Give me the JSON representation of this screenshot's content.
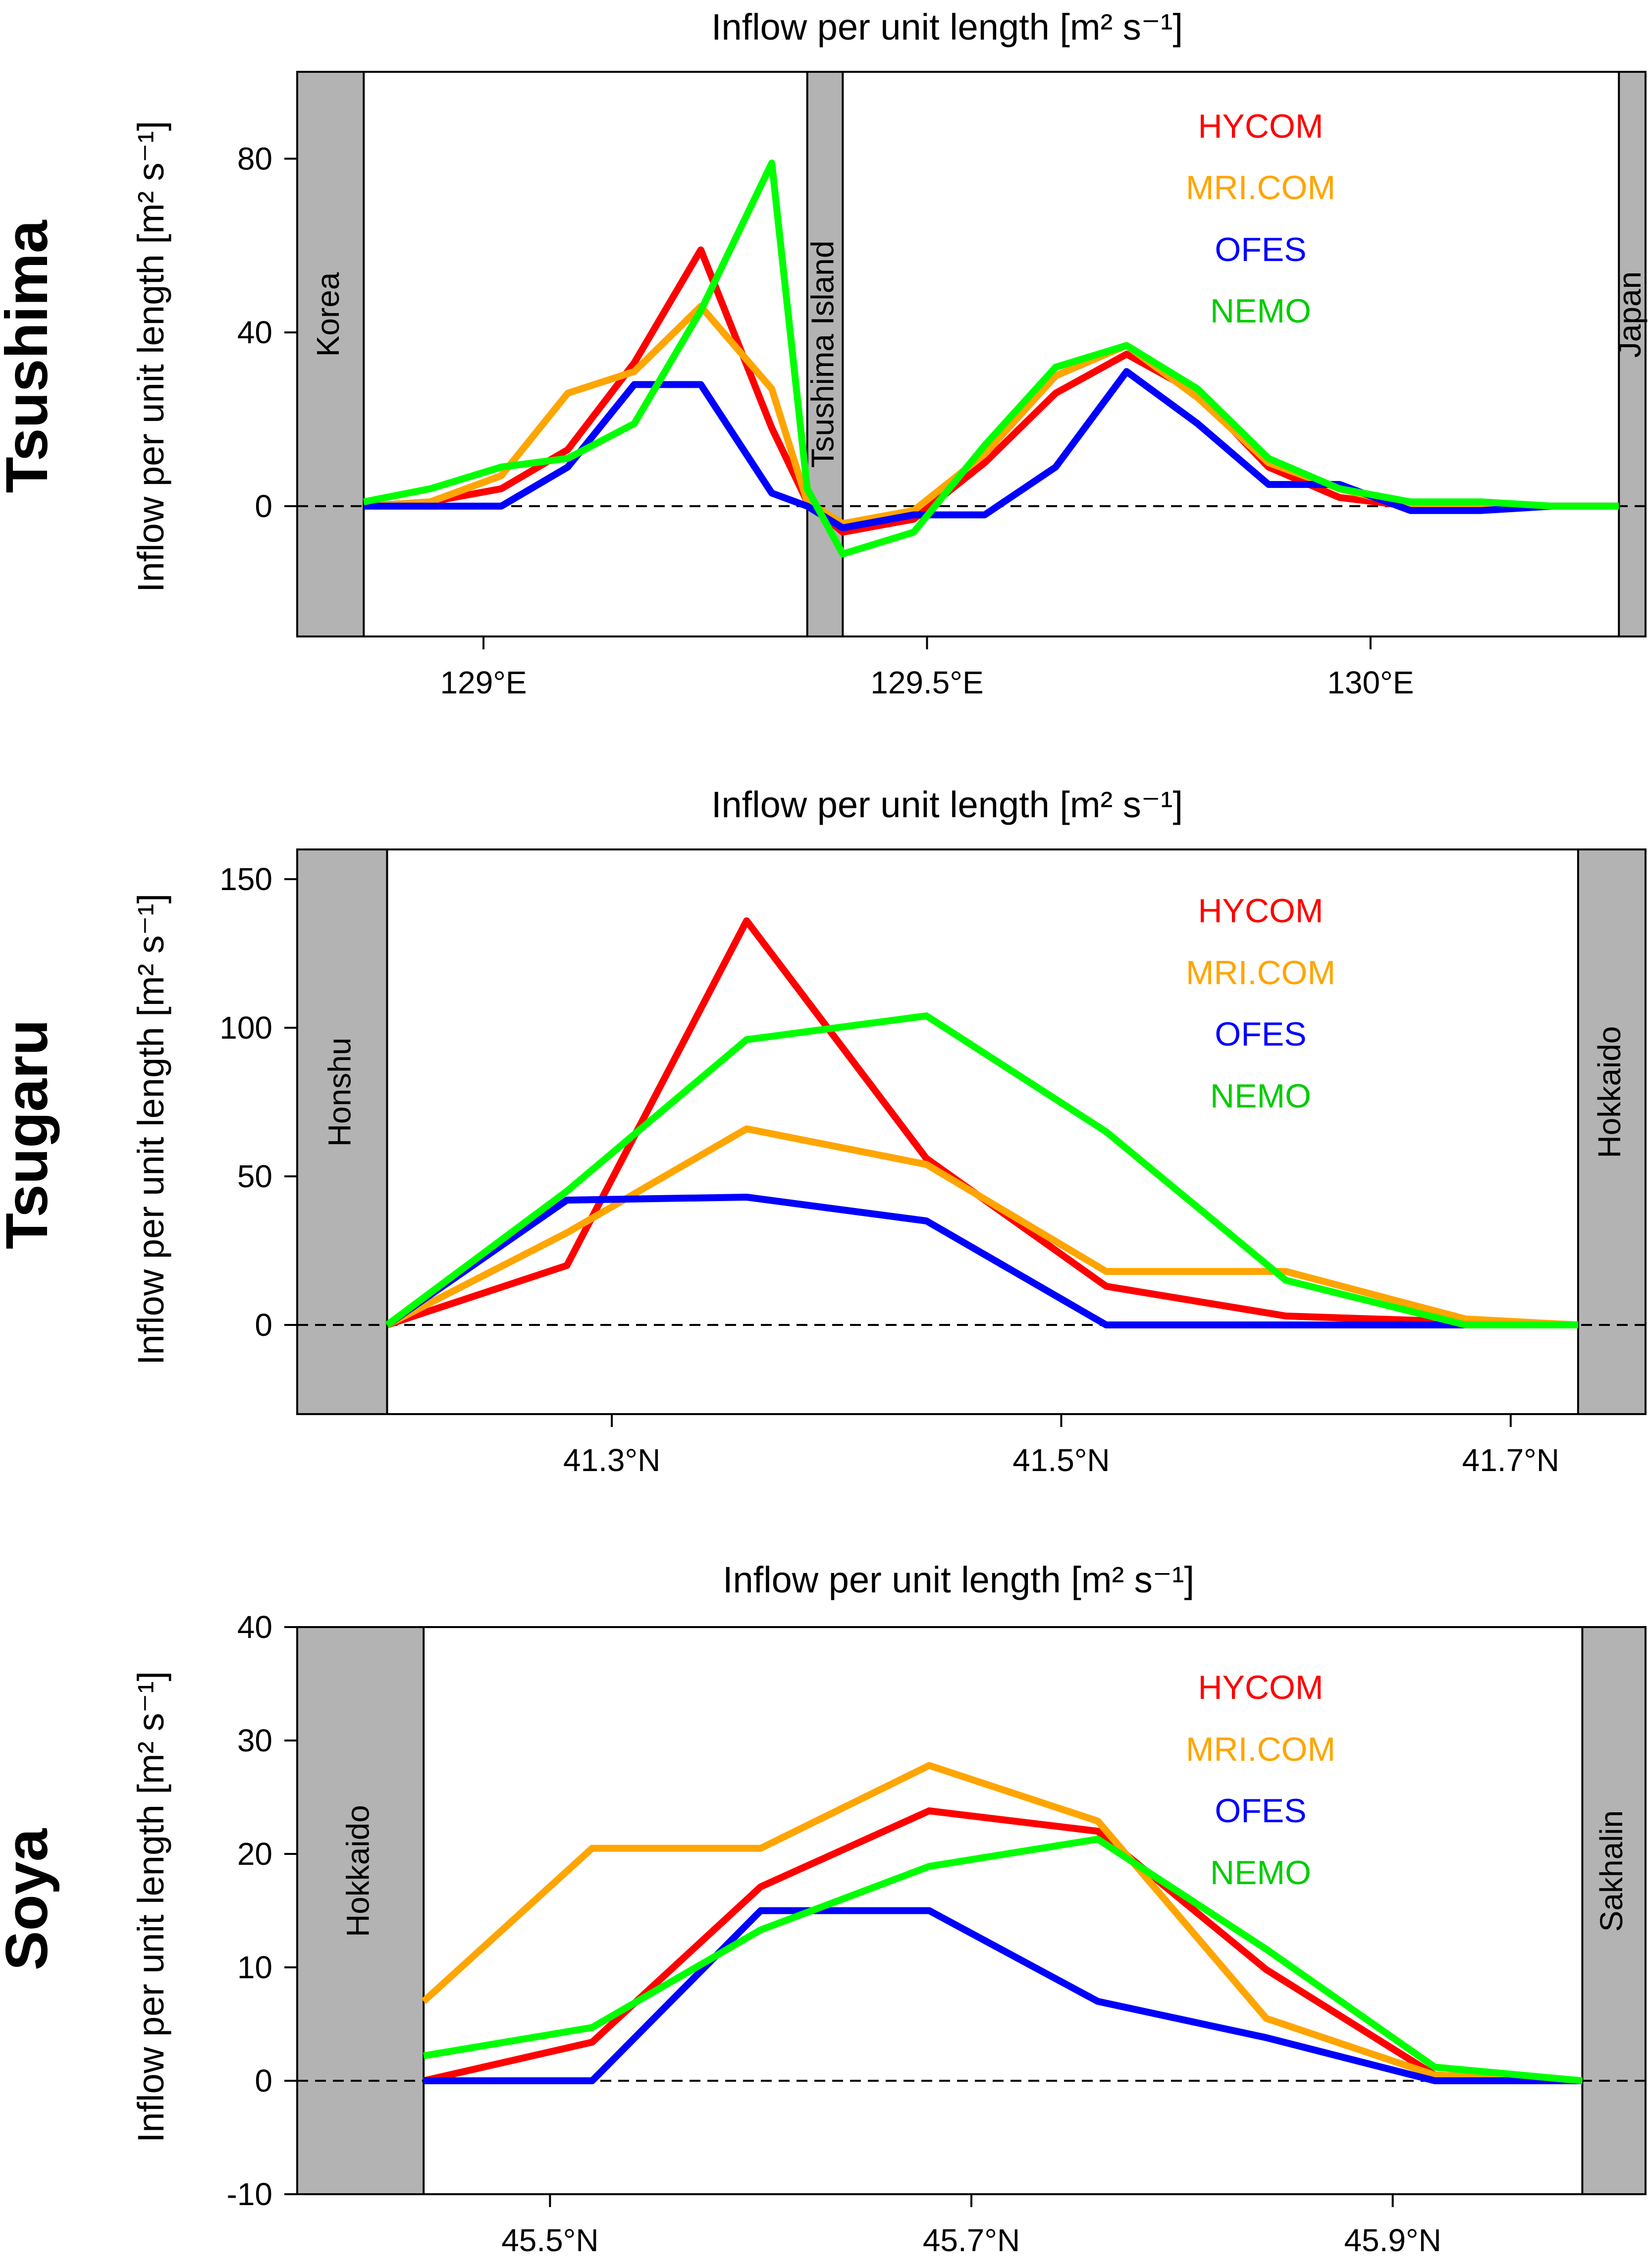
{
  "chart_data": [
    {
      "type": "line",
      "panel": "Tsushima",
      "title": "Inflow per unit length [m² s⁻¹]",
      "ylabel": "Inflow per unit length [m² s⁻¹]",
      "xlabel": "",
      "xlim": [
        128.79,
        130.31
      ],
      "ylim": [
        -30,
        100
      ],
      "yticks": [
        0,
        40,
        80
      ],
      "xticks": [
        129.0,
        129.5,
        130.0
      ],
      "xtick_labels": [
        "129°E",
        "129.5°E",
        "130°E"
      ],
      "land": [
        {
          "name": "Korea",
          "from": 128.79,
          "to": 128.865
        },
        {
          "name": "Tsushima Island",
          "from": 129.365,
          "to": 129.405
        },
        {
          "name": "Japan",
          "from": 130.28,
          "to": 130.31
        }
      ],
      "legend": [
        "HYCOM",
        "MRI.COM",
        "OFES",
        "NEMO"
      ],
      "series": [
        {
          "name": "HYCOM",
          "color": "#ff0000",
          "x": [
            128.865,
            128.94,
            129.02,
            129.095,
            129.17,
            129.245,
            129.325,
            129.365,
            129.405,
            129.485,
            129.565,
            129.645,
            129.725,
            129.805,
            129.885,
            129.965,
            130.045,
            130.125,
            130.205,
            130.28
          ],
          "y": [
            0,
            1,
            4,
            13,
            33,
            59,
            18,
            1,
            -6,
            -3,
            10,
            26,
            35,
            26,
            9,
            2,
            0,
            0,
            0,
            0
          ]
        },
        {
          "name": "MRI.COM",
          "color": "#ffa500",
          "x": [
            128.865,
            128.94,
            129.02,
            129.095,
            129.17,
            129.245,
            129.325,
            129.365,
            129.405,
            129.485,
            129.565,
            129.645,
            129.725,
            129.805,
            129.885,
            129.965,
            130.045,
            130.125,
            130.205,
            130.28
          ],
          "y": [
            0,
            1,
            7,
            26,
            31,
            46,
            27,
            1,
            -4,
            -1,
            12,
            30,
            37,
            25,
            10,
            4,
            0,
            0,
            0,
            0
          ]
        },
        {
          "name": "OFES",
          "color": "#0000ff",
          "x": [
            128.865,
            128.94,
            129.02,
            129.095,
            129.17,
            129.245,
            129.325,
            129.365,
            129.405,
            129.485,
            129.565,
            129.645,
            129.725,
            129.805,
            129.885,
            129.965,
            130.045,
            130.125,
            130.205,
            130.28
          ],
          "y": [
            0,
            0,
            0,
            9,
            28,
            28,
            3,
            0,
            -5,
            -2,
            -2,
            9,
            31,
            19,
            5,
            5,
            -1,
            -1,
            0,
            0
          ]
        },
        {
          "name": "NEMO",
          "color": "#00ff00",
          "x": [
            128.865,
            128.94,
            129.02,
            129.095,
            129.17,
            129.245,
            129.325,
            129.365,
            129.405,
            129.485,
            129.565,
            129.645,
            129.725,
            129.805,
            129.885,
            129.965,
            130.045,
            130.125,
            130.205,
            130.28
          ],
          "y": [
            1,
            4,
            9,
            11,
            19,
            45,
            79,
            4,
            -11,
            -6,
            14,
            32,
            37,
            27,
            11,
            4,
            1,
            1,
            0,
            0
          ]
        }
      ]
    },
    {
      "type": "line",
      "panel": "Tsugaru",
      "title": "Inflow per unit length [m² s⁻¹]",
      "ylabel": "Inflow per unit length [m² s⁻¹]",
      "xlabel": "",
      "xlim": [
        41.16,
        41.76
      ],
      "ylim": [
        -30,
        160
      ],
      "yticks": [
        0,
        50,
        100,
        150
      ],
      "xticks": [
        41.3,
        41.5,
        41.7
      ],
      "xtick_labels": [
        "41.3°N",
        "41.5°N",
        "41.7°N"
      ],
      "land": [
        {
          "name": "Honshu",
          "from": 41.16,
          "to": 41.2
        },
        {
          "name": "Hokkaido",
          "from": 41.73,
          "to": 41.76
        }
      ],
      "legend": [
        "HYCOM",
        "MRI.COM",
        "OFES",
        "NEMO"
      ],
      "series": [
        {
          "name": "HYCOM",
          "color": "#ff0000",
          "x": [
            41.2,
            41.28,
            41.36,
            41.44,
            41.52,
            41.6,
            41.68,
            41.73
          ],
          "y": [
            0,
            20,
            136,
            56,
            13,
            3,
            1,
            0
          ]
        },
        {
          "name": "MRI.COM",
          "color": "#ffa500",
          "x": [
            41.2,
            41.28,
            41.36,
            41.44,
            41.52,
            41.6,
            41.68,
            41.73
          ],
          "y": [
            0,
            31,
            66,
            54,
            18,
            18,
            2,
            0
          ]
        },
        {
          "name": "OFES",
          "color": "#0000ff",
          "x": [
            41.2,
            41.28,
            41.36,
            41.44,
            41.52,
            41.6,
            41.68,
            41.73
          ],
          "y": [
            0,
            42,
            43,
            35,
            0,
            0,
            0,
            0
          ]
        },
        {
          "name": "NEMO",
          "color": "#00ff00",
          "x": [
            41.2,
            41.28,
            41.36,
            41.44,
            41.52,
            41.6,
            41.68,
            41.73
          ],
          "y": [
            0,
            45,
            96,
            104,
            65,
            15,
            0,
            0
          ]
        }
      ]
    },
    {
      "type": "line",
      "panel": "Soya",
      "title": "Inflow per unit length [m² s⁻¹]",
      "ylabel": "Inflow per unit length [m² s⁻¹]",
      "xlabel": "",
      "xlim": [
        45.38,
        46.02
      ],
      "ylim": [
        -10,
        40
      ],
      "yticks": [
        -10,
        0,
        10,
        20,
        30,
        40
      ],
      "xticks": [
        45.5,
        45.7,
        45.9
      ],
      "xtick_labels": [
        "45.5°N",
        "45.7°N",
        "45.9°N"
      ],
      "land": [
        {
          "name": "Hokkaido",
          "from": 45.38,
          "to": 45.44
        },
        {
          "name": "Sakhalin",
          "from": 45.99,
          "to": 46.02
        }
      ],
      "legend": [
        "HYCOM",
        "MRI.COM",
        "OFES",
        "NEMO"
      ],
      "series": [
        {
          "name": "HYCOM",
          "color": "#ff0000",
          "x": [
            45.44,
            45.52,
            45.6,
            45.68,
            45.76,
            45.84,
            45.92,
            45.99
          ],
          "y": [
            0,
            3.4,
            17.1,
            23.8,
            22,
            9.8,
            0.5,
            0
          ]
        },
        {
          "name": "MRI.COM",
          "color": "#ffa500",
          "x": [
            45.44,
            45.52,
            45.6,
            45.68,
            45.76,
            45.84,
            45.92,
            45.99
          ],
          "y": [
            7,
            20.5,
            20.5,
            27.8,
            22.9,
            5.5,
            0.5,
            0
          ]
        },
        {
          "name": "OFES",
          "color": "#0000ff",
          "x": [
            45.44,
            45.52,
            45.6,
            45.68,
            45.76,
            45.84,
            45.92,
            45.99
          ],
          "y": [
            0,
            0,
            15,
            15,
            7,
            3.8,
            0,
            0
          ]
        },
        {
          "name": "NEMO",
          "color": "#00ff00",
          "x": [
            45.44,
            45.52,
            45.6,
            45.68,
            45.76,
            45.84,
            45.92,
            45.99
          ],
          "y": [
            2.2,
            4.7,
            13.3,
            18.9,
            21.3,
            11.6,
            1.2,
            0
          ]
        }
      ]
    }
  ]
}
